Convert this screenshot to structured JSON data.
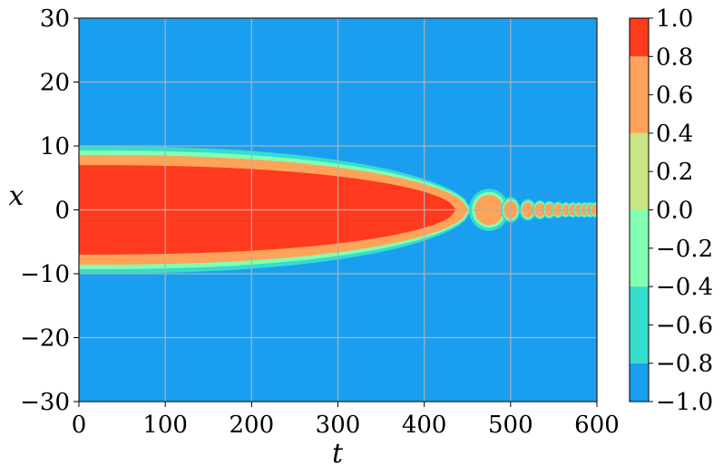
{
  "chart_data": {
    "type": "heatmap",
    "title": "",
    "xlabel": "t",
    "ylabel": "x",
    "xlim": [
      0,
      600
    ],
    "ylim": [
      -30,
      30
    ],
    "grid": true,
    "x_ticks": [
      {
        "value": 0,
        "label": "0"
      },
      {
        "value": 100,
        "label": "100"
      },
      {
        "value": 200,
        "label": "200"
      },
      {
        "value": 300,
        "label": "300"
      },
      {
        "value": 400,
        "label": "400"
      },
      {
        "value": 500,
        "label": "500"
      },
      {
        "value": 600,
        "label": "600"
      }
    ],
    "y_ticks": [
      {
        "value": 30,
        "label": "30"
      },
      {
        "value": 20,
        "label": "20"
      },
      {
        "value": 10,
        "label": "10"
      },
      {
        "value": 0,
        "label": "0"
      },
      {
        "value": -10,
        "label": "−10"
      },
      {
        "value": -20,
        "label": "−20"
      },
      {
        "value": -30,
        "label": "−30"
      }
    ],
    "colorbar": {
      "range": [
        -1.0,
        1.0
      ],
      "levels": [
        {
          "value": 1.0,
          "label": "1.0"
        },
        {
          "value": 0.8,
          "label": "0.8"
        },
        {
          "value": 0.6,
          "label": "0.6"
        },
        {
          "value": 0.4,
          "label": "0.4"
        },
        {
          "value": 0.2,
          "label": "0.2"
        },
        {
          "value": 0.0,
          "label": "0.0"
        },
        {
          "value": -0.2,
          "label": "−0.2"
        },
        {
          "value": -0.4,
          "label": "−0.4"
        },
        {
          "value": -0.6,
          "label": "−0.6"
        },
        {
          "value": -0.8,
          "label": "−0.8"
        },
        {
          "value": -1.0,
          "label": "−1.0"
        }
      ],
      "bands": [
        {
          "from": -1.0,
          "to": -0.8,
          "color": "#1a9ff0"
        },
        {
          "from": -0.8,
          "to": -0.4,
          "color": "#36dccc"
        },
        {
          "from": -0.4,
          "to": 0.0,
          "color": "#82ffb2"
        },
        {
          "from": 0.0,
          "to": 0.4,
          "color": "#c9e586"
        },
        {
          "from": 0.4,
          "to": 0.8,
          "color": "#ffa35a"
        },
        {
          "from": 0.8,
          "to": 1.0,
          "color": "#ff3a1f"
        }
      ]
    },
    "field": {
      "background_value": -1.0,
      "envelope_center": 0,
      "envelope_halfwidth_at_t0": 10,
      "envelope_collapse_t": 455,
      "bubbles": [
        {
          "t": 475,
          "halfwidth": 3.3
        },
        {
          "t": 500,
          "halfwidth": 2.0
        },
        {
          "t": 520,
          "halfwidth": 1.7
        },
        {
          "t": 534,
          "halfwidth": 1.5
        },
        {
          "t": 545,
          "halfwidth": 1.4
        },
        {
          "t": 555,
          "halfwidth": 1.3
        },
        {
          "t": 564,
          "halfwidth": 1.2
        },
        {
          "t": 572,
          "halfwidth": 1.2
        },
        {
          "t": 579,
          "halfwidth": 1.2
        },
        {
          "t": 586,
          "halfwidth": 1.2
        },
        {
          "t": 592,
          "halfwidth": 1.2
        },
        {
          "t": 598,
          "halfwidth": 1.2
        }
      ]
    },
    "colors": {
      "grid": "#b0b0b0",
      "axes": "#000000"
    }
  }
}
